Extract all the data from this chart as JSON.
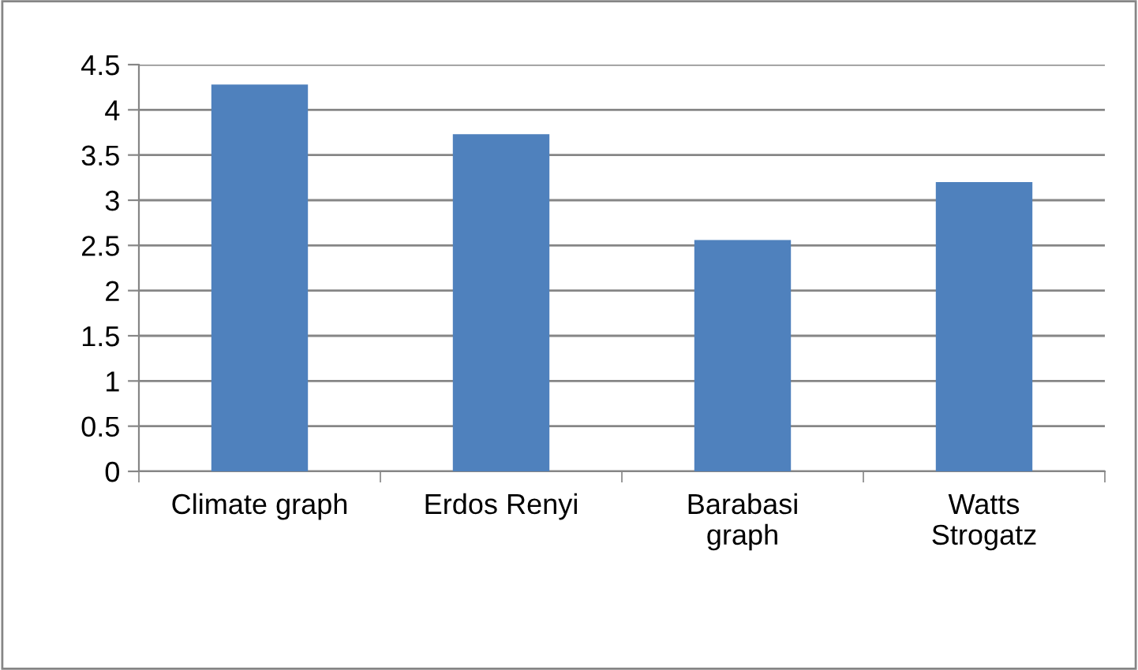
{
  "chart_data": {
    "type": "bar",
    "categories": [
      "Climate graph",
      "Erdos Renyi",
      "Barabasi\ngraph",
      "Watts\nStrogatz"
    ],
    "values": [
      4.28,
      3.73,
      2.56,
      3.2
    ],
    "color": "#4f81bd",
    "ylim": [
      0,
      4.5
    ],
    "yticks": [
      0,
      0.5,
      1,
      1.5,
      2,
      2.5,
      3,
      3.5,
      4,
      4.5
    ],
    "grid": "y"
  }
}
